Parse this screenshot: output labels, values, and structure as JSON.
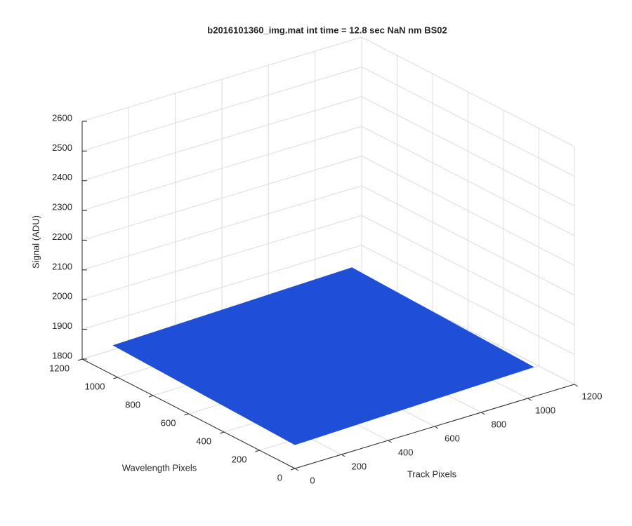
{
  "chart_data": {
    "type": "surface3d",
    "title": "b2016101360_img.mat int time = 12.8 sec  NaN nm BS02",
    "xlabel": "Track Pixels",
    "ylabel": "Wavelength Pixels",
    "zlabel": "Signal (ADU)",
    "x": [
      0,
      256,
      512,
      768,
      1024
    ],
    "y": [
      0,
      256,
      512,
      768,
      1024
    ],
    "z": [
      [
        1880,
        1885,
        1890,
        1895,
        1900
      ],
      [
        1885,
        1890,
        1895,
        1900,
        1905
      ],
      [
        1890,
        1895,
        1900,
        1905,
        1910
      ],
      [
        1895,
        1900,
        1905,
        1910,
        1915
      ],
      [
        1900,
        1905,
        1910,
        1915,
        1920
      ]
    ],
    "color": "#1f4fd6",
    "xlim": [
      0,
      1200
    ],
    "xticks": [
      0,
      200,
      400,
      600,
      800,
      1000,
      1200
    ],
    "ylim": [
      0,
      1200
    ],
    "yticks": [
      0,
      200,
      400,
      600,
      800,
      1000,
      1200
    ],
    "zlim": [
      1800,
      2600
    ],
    "zticks": [
      1800,
      1900,
      2000,
      2100,
      2200,
      2300,
      2400,
      2500,
      2600
    ],
    "grid": true
  }
}
